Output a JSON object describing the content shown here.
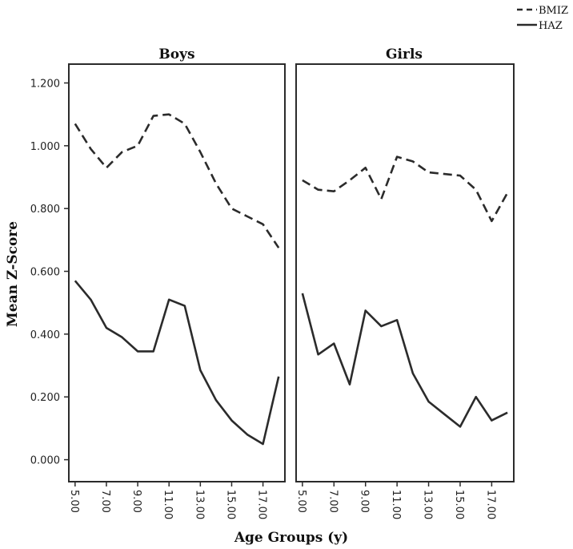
{
  "chart_data": {
    "type": "line",
    "ylabel": "Mean Z-Score",
    "xlabel": "Age Groups (y)",
    "ylim": [
      -0.07,
      1.26
    ],
    "xlim": [
      4.6,
      18.4
    ],
    "yticks": [
      "0.000",
      "0.200",
      "0.400",
      "0.600",
      "0.800",
      "1.000",
      "1.200"
    ],
    "ytick_values": [
      0.0,
      0.2,
      0.4,
      0.6,
      0.8,
      1.0,
      1.2
    ],
    "xticks": [
      "5.00",
      "7.00",
      "9.00",
      "11.00",
      "13.00",
      "15.00",
      "17.00"
    ],
    "xtick_values": [
      5,
      7,
      9,
      11,
      13,
      15,
      17
    ],
    "grid": false,
    "legend": {
      "placement": "top-right",
      "entries": [
        {
          "name": "BMIZ",
          "style": "dashed"
        },
        {
          "name": "HAZ",
          "style": "solid"
        }
      ]
    },
    "panels": [
      {
        "title": "Boys",
        "x": [
          5,
          6,
          7,
          8,
          9,
          10,
          11,
          12,
          13,
          14,
          15,
          16,
          17,
          18
        ],
        "series": [
          {
            "name": "BMIZ",
            "style": "dashed",
            "values": [
              1.07,
              0.99,
              0.93,
              0.98,
              1.0,
              1.095,
              1.1,
              1.07,
              0.98,
              0.88,
              0.8,
              0.775,
              0.75,
              0.675
            ]
          },
          {
            "name": "HAZ",
            "style": "solid",
            "values": [
              0.57,
              0.51,
              0.42,
              0.39,
              0.345,
              0.345,
              0.51,
              0.49,
              0.285,
              0.19,
              0.125,
              0.08,
              0.05,
              0.265
            ]
          }
        ]
      },
      {
        "title": "Girls",
        "x": [
          5,
          6,
          7,
          8,
          9,
          10,
          11,
          12,
          13,
          14,
          15,
          16,
          17,
          18
        ],
        "series": [
          {
            "name": "BMIZ",
            "style": "dashed",
            "values": [
              0.89,
              0.86,
              0.855,
              0.89,
              0.93,
              0.83,
              0.965,
              0.95,
              0.915,
              0.91,
              0.905,
              0.86,
              0.76,
              0.85
            ]
          },
          {
            "name": "HAZ",
            "style": "solid",
            "values": [
              0.53,
              0.335,
              0.37,
              0.24,
              0.475,
              0.425,
              0.445,
              0.275,
              0.185,
              0.145,
              0.105,
              0.2,
              0.125,
              0.15
            ]
          }
        ]
      }
    ]
  },
  "colors": {
    "line": "#2b2b2b",
    "frame": "#2b2b2b",
    "text": "#111111",
    "background": "#ffffff"
  }
}
